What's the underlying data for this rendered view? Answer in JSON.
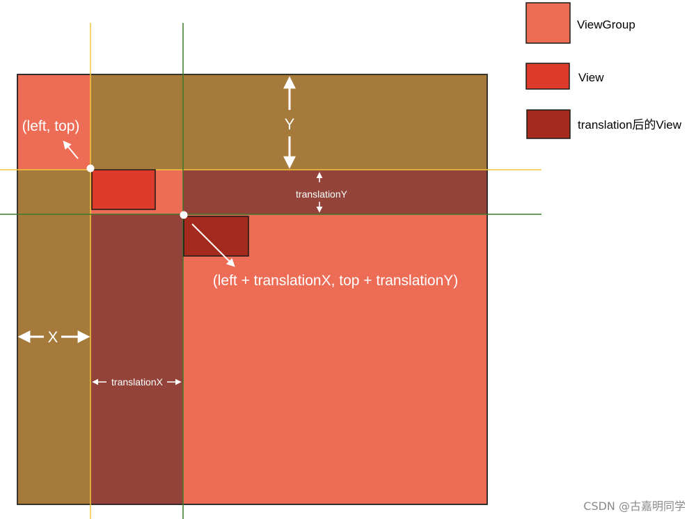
{
  "colors": {
    "viewgroup": "#ED6C56",
    "view": "#DC3B2B",
    "translated_view": "#A42A1E",
    "region": "#A57A3B",
    "strip": "#94433A",
    "yellow_line": "#F0C63A",
    "green_line": "#3B7A2A",
    "border": "#1a1a1a"
  },
  "legend": {
    "viewgroup_label": "ViewGroup",
    "view_label": "View",
    "translated_label": "translation后的View"
  },
  "labels": {
    "left_top": "(left, top)",
    "translated_point": "(left + translationX, top + translationY)",
    "y_axis": "Y",
    "x_axis": "X",
    "translation_y": "translationY",
    "translation_x": "translationX"
  },
  "watermark": "CSDN @古嘉明同学"
}
